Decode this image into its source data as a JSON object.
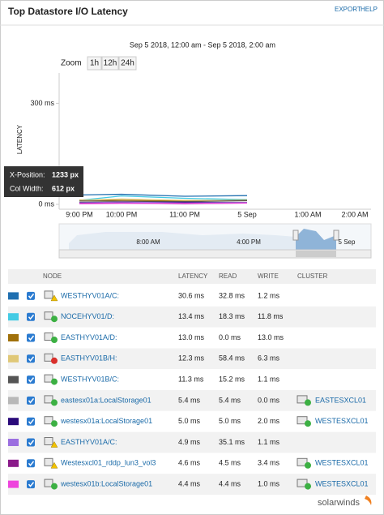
{
  "header": {
    "title": "Top Datastore I/O Latency",
    "links": [
      "EXPORT",
      "HELP"
    ]
  },
  "chart_data": {
    "type": "line",
    "subtitle": "Sep 5 2018, 12:00 am - Sep 5 2018, 2:00 am",
    "zoom_label": "Zoom",
    "zoom_options": [
      "1h",
      "12h",
      "24h"
    ],
    "y_label": "LATENCY",
    "ylim": [
      0,
      390
    ],
    "yticks": [
      {
        "value": 0,
        "label": "0 ms"
      },
      {
        "value": 300,
        "label": "300 ms"
      }
    ],
    "categories": [
      "9:00 PM",
      "10:00 PM",
      "11:00 PM",
      "5 Sep",
      "1:00 AM",
      "2:00 AM"
    ],
    "series": [
      {
        "color": "#1f6fb0",
        "values": [
          28,
          30,
          24,
          26,
          null,
          null
        ]
      },
      {
        "color": "#44cbe4",
        "values": [
          12,
          25,
          18,
          14,
          null,
          null
        ]
      },
      {
        "color": "#a0700a",
        "values": [
          13,
          12,
          10,
          13,
          null,
          null
        ]
      },
      {
        "color": "#e0c878",
        "values": [
          12,
          16,
          12,
          12,
          null,
          null
        ]
      },
      {
        "color": "#555555",
        "values": [
          10,
          9,
          8,
          11,
          null,
          null
        ]
      },
      {
        "color": "#b8b8b8",
        "values": [
          6,
          5,
          5,
          5,
          null,
          null
        ]
      },
      {
        "color": "#2a0a7a",
        "values": [
          5,
          6,
          6,
          5,
          null,
          null
        ]
      },
      {
        "color": "#9b6fe0",
        "values": [
          4,
          7,
          4,
          5,
          null,
          null
        ]
      },
      {
        "color": "#8a1a8a",
        "values": [
          3,
          4,
          2,
          4,
          null,
          null
        ]
      },
      {
        "color": "#ee44dd",
        "values": [
          2,
          3,
          3,
          4,
          null,
          null
        ]
      }
    ],
    "navigator_labels": [
      "8:00 AM",
      "4:00 PM",
      "5 Sep"
    ],
    "tooltip": {
      "x_label": "X-Position:",
      "x_value": "1233 px",
      "w_label": "Col Width:",
      "w_value": "612 px"
    }
  },
  "table": {
    "columns": [
      "NODE",
      "LATENCY",
      "READ",
      "WRITE",
      "CLUSTER"
    ],
    "rows": [
      {
        "color": "#1f6fb0",
        "status": "warning",
        "node": "WESTHYV01A/C:",
        "latency": "30.6 ms",
        "read": "32.8 ms",
        "write": "1.2 ms"
      },
      {
        "color": "#44cbe4",
        "status": "up",
        "node": "NOCEHYV01/D:",
        "latency": "13.4 ms",
        "read": "18.3 ms",
        "write": "11.8 ms"
      },
      {
        "color": "#a0700a",
        "status": "up",
        "node": "EASTHYV01A/D:",
        "latency": "13.0 ms",
        "read": "0.0 ms",
        "write": "13.0 ms"
      },
      {
        "color": "#e0c878",
        "status": "critical",
        "node": "EASTHYV01B/H:",
        "latency": "12.3 ms",
        "read": "58.4 ms",
        "write": "6.3 ms"
      },
      {
        "color": "#555555",
        "status": "up",
        "node": "WESTHYV01B/C:",
        "latency": "11.3 ms",
        "read": "15.2 ms",
        "write": "1.1 ms"
      },
      {
        "color": "#b8b8b8",
        "status": "up",
        "node": "eastesx01a:LocalStorage01",
        "latency": "5.4 ms",
        "read": "5.4 ms",
        "write": "0.0 ms",
        "cluster": "EASTESXCL01"
      },
      {
        "color": "#2a0a7a",
        "status": "up",
        "node": "westesx01a:LocalStorage01",
        "latency": "5.0 ms",
        "read": "5.0 ms",
        "write": "2.0 ms",
        "cluster": "WESTESXCL01"
      },
      {
        "color": "#9b6fe0",
        "status": "warning",
        "node": "EASTHYV01A/C:",
        "latency": "4.9 ms",
        "read": "35.1 ms",
        "write": "1.1 ms"
      },
      {
        "color": "#8a1a8a",
        "status": "warning",
        "node": "Westesxcl01_rddp_lun3_vol3",
        "latency": "4.6 ms",
        "read": "4.5 ms",
        "write": "3.4 ms",
        "cluster": "WESTESXCL01"
      },
      {
        "color": "#ee44dd",
        "status": "up",
        "node": "westesx01b:LocalStorage01",
        "latency": "4.4 ms",
        "read": "4.4 ms",
        "write": "1.0 ms",
        "cluster": "WESTESXCL01"
      }
    ]
  },
  "footer": {
    "brand": "solarwinds"
  }
}
